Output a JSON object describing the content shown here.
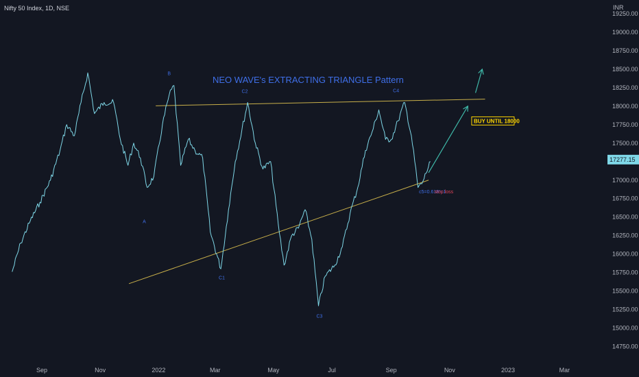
{
  "header": {
    "symbol_title": "Nifty 50 Index, 1D, NSE"
  },
  "currency": "INR",
  "last_price_label": "17277.15",
  "colors": {
    "background": "#131722",
    "price_line": "#7fd8e8",
    "trend_lines": "#c9b04a",
    "labels": "#3f6fe8",
    "arrows": "#3fb8a8",
    "buy_box": "#ffd600",
    "last_price": "#7fd8e8",
    "stop_loss": "#e0445a"
  },
  "chart_data": {
    "type": "line",
    "title": "NEO WAVE's EXTRACTING TRIANGLE Pattern",
    "x_tick_labels": [
      "Sep",
      "Nov",
      "2022",
      "Mar",
      "May",
      "Jul",
      "Sep",
      "Nov",
      "2023",
      "Mar"
    ],
    "y_tick_labels": [
      "19250.00",
      "19000.00",
      "18750.00",
      "18500.00",
      "18250.00",
      "18000.00",
      "17750.00",
      "17500.00",
      "17250.00",
      "17000.00",
      "16750.00",
      "16500.00",
      "16250.00",
      "16000.00",
      "15750.00",
      "15500.00",
      "15250.00",
      "15000.00",
      "14750.00"
    ],
    "ylim": [
      14620,
      19320
    ],
    "series": [
      {
        "name": "",
        "points": [
          [
            "2021-08-01",
            15760
          ],
          [
            "2021-08-10",
            16150
          ],
          [
            "2021-08-20",
            16450
          ],
          [
            "2021-08-30",
            16700
          ],
          [
            "2021-09-10",
            17000
          ],
          [
            "2021-09-20",
            17400
          ],
          [
            "2021-09-27",
            17750
          ],
          [
            "2021-10-05",
            17600
          ],
          [
            "2021-10-12",
            18050
          ],
          [
            "2021-10-19",
            18450
          ],
          [
            "2021-10-26",
            17900
          ],
          [
            "2021-11-05",
            18050
          ],
          [
            "2021-11-15",
            18050
          ],
          [
            "2021-11-22",
            17550
          ],
          [
            "2021-11-30",
            17200
          ],
          [
            "2021-12-06",
            17500
          ],
          [
            "2021-12-13",
            17300
          ],
          [
            "2021-12-20",
            16900
          ],
          [
            "2021-12-27",
            17050
          ],
          [
            "2022-01-05",
            17750
          ],
          [
            "2022-01-12",
            18150
          ],
          [
            "2022-01-17",
            18280
          ],
          [
            "2022-01-24",
            17200
          ],
          [
            "2022-02-01",
            17550
          ],
          [
            "2022-02-08",
            17400
          ],
          [
            "2022-02-16",
            17300
          ],
          [
            "2022-02-24",
            16300
          ],
          [
            "2022-03-07",
            15800
          ],
          [
            "2022-03-15",
            16600
          ],
          [
            "2022-03-22",
            17250
          ],
          [
            "2022-04-04",
            18050
          ],
          [
            "2022-04-12",
            17500
          ],
          [
            "2022-04-20",
            17150
          ],
          [
            "2022-04-28",
            17250
          ],
          [
            "2022-05-06",
            16400
          ],
          [
            "2022-05-12",
            15850
          ],
          [
            "2022-05-20",
            16250
          ],
          [
            "2022-05-27",
            16350
          ],
          [
            "2022-06-03",
            16600
          ],
          [
            "2022-06-10",
            16200
          ],
          [
            "2022-06-17",
            15300
          ],
          [
            "2022-06-24",
            15700
          ],
          [
            "2022-07-04",
            15850
          ],
          [
            "2022-07-12",
            16100
          ],
          [
            "2022-07-20",
            16550
          ],
          [
            "2022-07-28",
            16900
          ],
          [
            "2022-08-05",
            17400
          ],
          [
            "2022-08-12",
            17650
          ],
          [
            "2022-08-19",
            17950
          ],
          [
            "2022-08-26",
            17550
          ],
          [
            "2022-09-01",
            17550
          ],
          [
            "2022-09-08",
            17800
          ],
          [
            "2022-09-15",
            18050
          ],
          [
            "2022-09-22",
            17600
          ],
          [
            "2022-09-29",
            16900
          ],
          [
            "2022-10-03",
            16950
          ],
          [
            "2022-10-12",
            17250
          ]
        ]
      }
    ],
    "pattern_lines": [
      {
        "name": "upper-trendline",
        "from": [
          "2021-12-29",
          18005
        ],
        "to": [
          "2022-12-08",
          18095
        ]
      },
      {
        "name": "lower-trendline",
        "from": [
          "2021-12-01",
          15600
        ],
        "to": [
          "2022-10-10",
          17000
        ]
      }
    ],
    "arrows": [
      {
        "name": "breakout-arrow",
        "from": [
          "2022-10-10",
          17100
        ],
        "to": [
          "2022-11-20",
          18000
        ]
      },
      {
        "name": "target-arrow",
        "from": [
          "2022-11-28",
          18180
        ],
        "to": [
          "2022-12-05",
          18500
        ]
      }
    ],
    "annotations": [
      {
        "name": "label-a",
        "text": "A",
        "x": "2021-12-17",
        "y": 16420
      },
      {
        "name": "label-b",
        "text": "B",
        "x": "2022-01-12",
        "y": 18420
      },
      {
        "name": "label-c1",
        "text": "C1",
        "x": "2022-03-08",
        "y": 15660
      },
      {
        "name": "label-c2",
        "text": "C2",
        "x": "2022-04-01",
        "y": 18180
      },
      {
        "name": "label-c3",
        "text": "C3",
        "x": "2022-06-18",
        "y": 15140
      },
      {
        "name": "label-c4",
        "text": "C4",
        "x": "2022-09-06",
        "y": 18190
      },
      {
        "name": "label-c5",
        "text": "c5=0.618*c1",
        "x": "2022-09-30",
        "y": 16820
      }
    ],
    "buy_label": {
      "text": "BUY UNTIL 18000",
      "x": "2022-11-24",
      "y": 17800
    },
    "stop_loss_label": {
      "text": "stop loss",
      "x": "2022-10-16",
      "y": 16820
    },
    "last_price": 17277.15
  }
}
